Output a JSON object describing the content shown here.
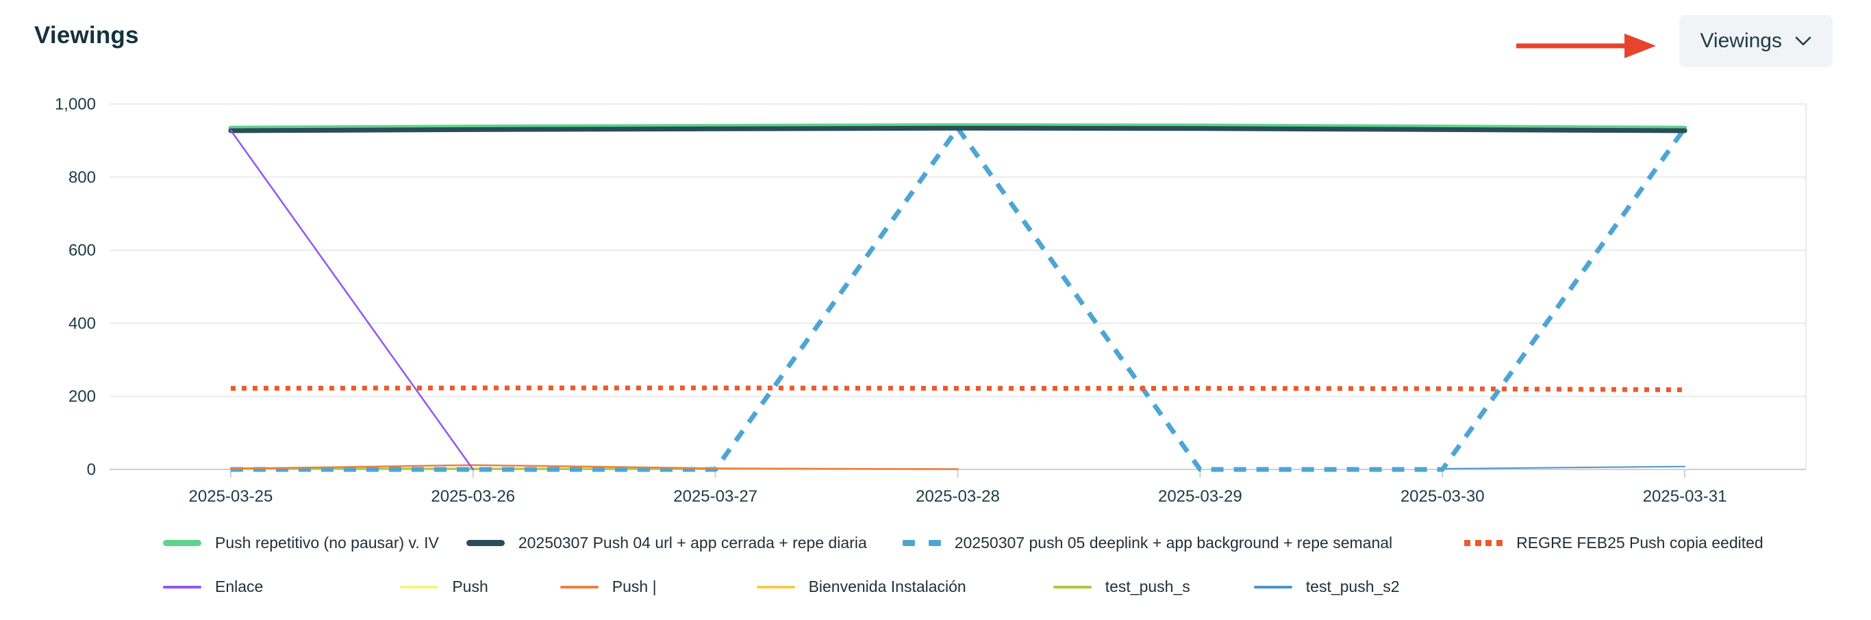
{
  "header": {
    "title": "Viewings"
  },
  "toolbar": {
    "metric_dropdown": {
      "label": "Viewings",
      "icon": "chevron-down"
    }
  },
  "annotation": {
    "arrow_color": "#e8432c",
    "points_to": "metric-dropdown"
  },
  "colors": {
    "title_text": "#15323d",
    "axis_text": "#1d3a46",
    "legend_text": "#21303a",
    "gridline": "#e9eaec",
    "axis_line": "#ccd1d6",
    "dropdown_bg": "#f1f3f6"
  },
  "chart_data": {
    "type": "line",
    "title": "Viewings",
    "xlabel": "",
    "ylabel": "",
    "grid": true,
    "legend_position": "bottom",
    "categories": [
      "2025-03-25",
      "2025-03-26",
      "2025-03-27",
      "2025-03-28",
      "2025-03-29",
      "2025-03-30",
      "2025-03-31"
    ],
    "y_axis": {
      "min": 0,
      "max": 1000,
      "ticks": [
        {
          "value": 0,
          "label": "0"
        },
        {
          "value": 200,
          "label": "200"
        },
        {
          "value": 400,
          "label": "400"
        },
        {
          "value": 600,
          "label": "600"
        },
        {
          "value": 800,
          "label": "800"
        },
        {
          "value": 1000,
          "label": "1,000"
        }
      ]
    },
    "series": [
      {
        "name": "Push repetitivo (no pausar) v. IV",
        "color": "#5fd38d",
        "style": "solid",
        "width": 7,
        "legend_row": 1,
        "values": [
          934,
          937,
          939,
          941,
          940,
          937,
          934
        ]
      },
      {
        "name": "20250307 Push 04 url + app cerrada + repe diaria",
        "color": "#2a4d57",
        "style": "solid",
        "width": 7,
        "legend_row": 1,
        "values": [
          927,
          930,
          932,
          934,
          933,
          930,
          927
        ]
      },
      {
        "name": "20250307 push 05 deeplink + app background + repe semanal",
        "color": "#4da5d4",
        "style": "dashed",
        "width": 7,
        "legend_row": 1,
        "values": [
          0,
          0,
          0,
          934,
          0,
          0,
          934
        ]
      },
      {
        "name": "REGRE FEB25 Push copia eedited",
        "color": "#ee592b",
        "style": "dotted",
        "width": 7,
        "legend_row": 1,
        "values": [
          222,
          223,
          223,
          222,
          222,
          221,
          218
        ]
      },
      {
        "name": "Enlace",
        "color": "#9355ef",
        "style": "solid",
        "width": 2.5,
        "legend_row": 2,
        "values": [
          928,
          0,
          null,
          null,
          null,
          null,
          null
        ]
      },
      {
        "name": "Push",
        "color": "#f3f57e",
        "style": "solid",
        "width": 2.5,
        "legend_row": 2,
        "values": [
          1,
          1,
          1,
          null,
          null,
          null,
          null
        ]
      },
      {
        "name": "Push |",
        "color": "#e8823f",
        "style": "solid",
        "width": 2.5,
        "legend_row": 2,
        "values": [
          2,
          12,
          3,
          1,
          null,
          null,
          null
        ]
      },
      {
        "name": "Bienvenida Instalación",
        "color": "#f7c94e",
        "style": "solid",
        "width": 2.5,
        "legend_row": 2,
        "values": [
          4,
          3,
          2,
          1,
          null,
          null,
          null
        ]
      },
      {
        "name": "test_push_s",
        "color": "#a9c93f",
        "style": "solid",
        "width": 2.5,
        "legend_row": 2,
        "values": [
          2,
          1,
          1,
          null,
          null,
          null,
          null
        ]
      },
      {
        "name": "test_push_s2",
        "color": "#4c93c9",
        "style": "solid",
        "width": 2,
        "legend_row": 2,
        "values": [
          null,
          null,
          null,
          null,
          null,
          2,
          8
        ]
      }
    ]
  }
}
